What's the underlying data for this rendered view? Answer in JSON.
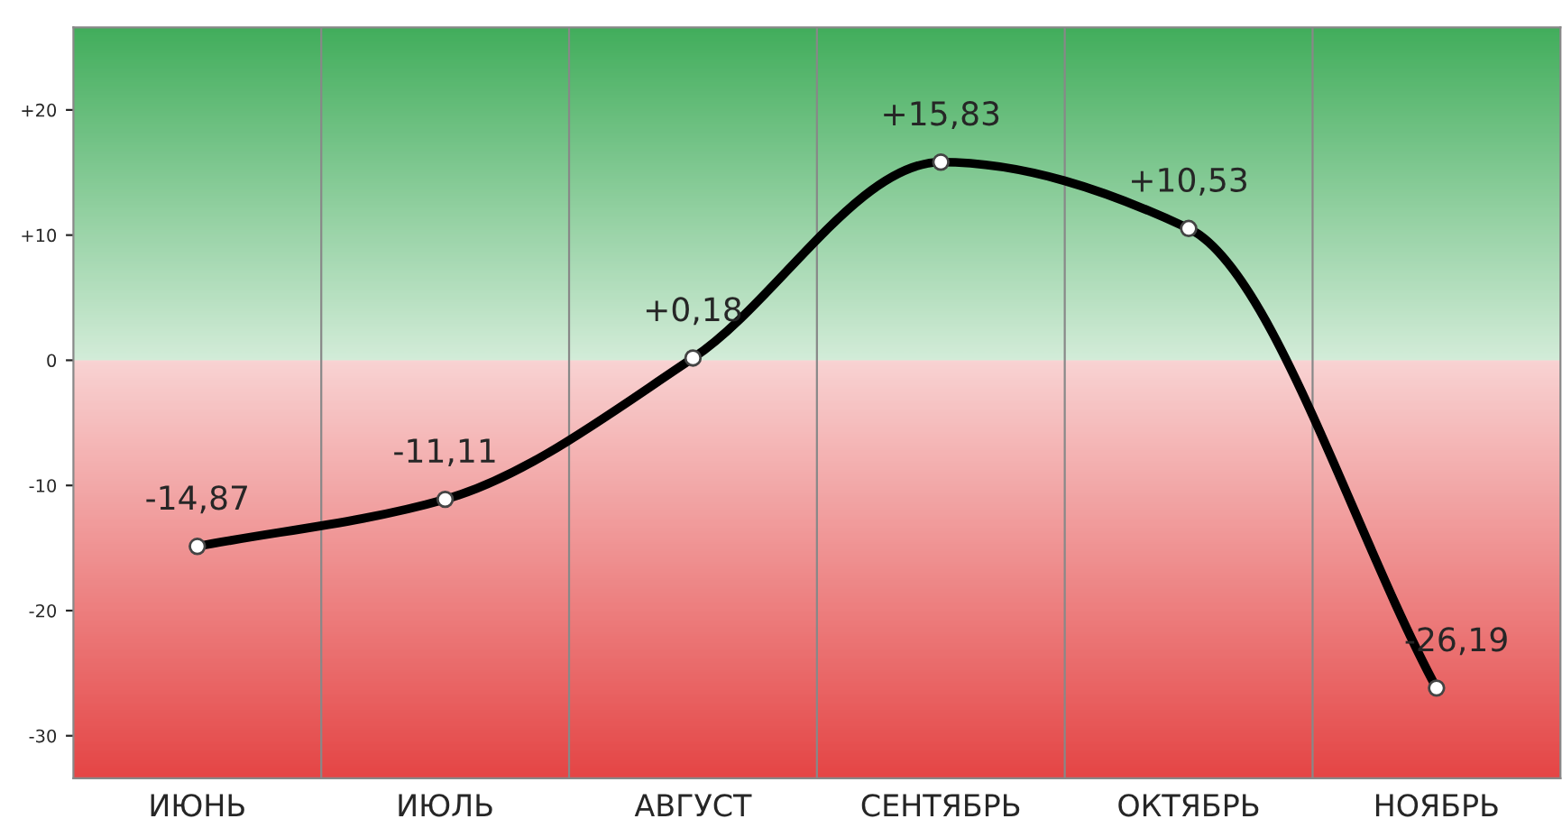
{
  "chart_data": {
    "type": "line",
    "categories": [
      "ИЮНЬ",
      "ИЮЛЬ",
      "АВГУСТ",
      "СЕНТЯБРЬ",
      "ОКТЯБРЬ",
      "НОЯБРЬ"
    ],
    "series": [
      {
        "color": "#000000",
        "values": [
          -14.87,
          -11.11,
          0.18,
          15.83,
          10.53,
          -26.19
        ],
        "value_labels": [
          "-14,87",
          "-11,11",
          "+0,18",
          "+15,83",
          "+10,53",
          "-26,19"
        ]
      }
    ],
    "ylim": [
      -33.4,
      26.6
    ],
    "yticks": [
      {
        "value": 20,
        "label": "+20"
      },
      {
        "value": 10,
        "label": "+10"
      },
      0,
      -10,
      -20,
      -30
    ],
    "bands": [
      {
        "axis": "y",
        "from": 0,
        "to": 26.6,
        "color": "#1f9e3e"
      },
      {
        "axis": "y",
        "from": -33.4,
        "to": 0,
        "color": "#e02424"
      }
    ],
    "grid": "x",
    "marker": "circle",
    "line_style": "solid",
    "legend": false
  }
}
